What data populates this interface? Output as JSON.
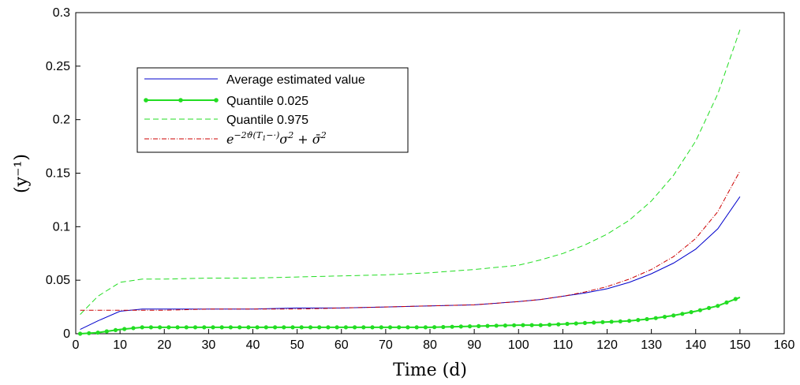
{
  "chart_data": {
    "type": "line",
    "title": "",
    "xlabel": "Time (d)",
    "ylabel": "(y⁻¹)",
    "xlim": [
      0,
      160
    ],
    "ylim": [
      0,
      0.3
    ],
    "x_ticks": [
      0,
      10,
      20,
      30,
      40,
      50,
      60,
      70,
      80,
      90,
      100,
      110,
      120,
      130,
      140,
      150,
      160
    ],
    "y_ticks": [
      0,
      0.05,
      0.1,
      0.15,
      0.2,
      0.25,
      0.3
    ],
    "y_tick_labels": [
      "0",
      "0.05",
      "0.1",
      "0.15",
      "0.2",
      "0.25",
      "0.3"
    ],
    "grid": false,
    "legend_position": "upper-left",
    "x": [
      1,
      5,
      10,
      15,
      20,
      30,
      40,
      50,
      60,
      70,
      80,
      90,
      100,
      105,
      110,
      115,
      120,
      125,
      130,
      135,
      140,
      145,
      150
    ],
    "series": [
      {
        "name": "Average estimated value",
        "color": "#0000cc",
        "style": "solid",
        "values": [
          0.004,
          0.012,
          0.021,
          0.023,
          0.023,
          0.023,
          0.023,
          0.024,
          0.024,
          0.025,
          0.026,
          0.027,
          0.03,
          0.032,
          0.035,
          0.038,
          0.042,
          0.048,
          0.056,
          0.066,
          0.079,
          0.098,
          0.128
        ]
      },
      {
        "name": "Quantile 0.025",
        "color": "#22dd22",
        "style": "dots",
        "values": [
          0.0,
          0.001,
          0.004,
          0.006,
          0.006,
          0.006,
          0.006,
          0.006,
          0.006,
          0.006,
          0.006,
          0.007,
          0.008,
          0.008,
          0.009,
          0.01,
          0.011,
          0.012,
          0.014,
          0.017,
          0.021,
          0.026,
          0.034
        ]
      },
      {
        "name": "Quantile 0.975",
        "color": "#22dd22",
        "style": "dashed",
        "values": [
          0.018,
          0.035,
          0.048,
          0.051,
          0.051,
          0.052,
          0.052,
          0.053,
          0.054,
          0.055,
          0.057,
          0.06,
          0.064,
          0.069,
          0.075,
          0.083,
          0.093,
          0.106,
          0.124,
          0.148,
          0.18,
          0.224,
          0.284
        ]
      },
      {
        "name": "e^{-2ϑ(T₁−·)}σ² + σ̄²",
        "color": "#cc0000",
        "style": "dashdot",
        "values": [
          0.022,
          0.022,
          0.022,
          0.022,
          0.022,
          0.023,
          0.023,
          0.023,
          0.024,
          0.025,
          0.026,
          0.027,
          0.03,
          0.032,
          0.035,
          0.039,
          0.044,
          0.051,
          0.06,
          0.072,
          0.089,
          0.114,
          0.152
        ]
      }
    ]
  }
}
